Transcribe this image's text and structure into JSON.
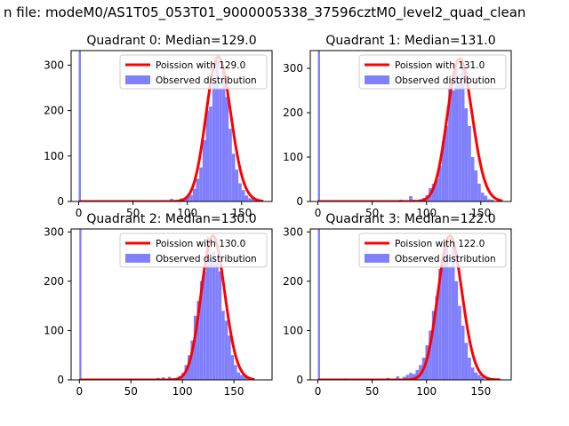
{
  "figure_title": "n file: modeM0/AS1T05_053T01_9000005338_37596cztM0_level2_quad_clean",
  "colors": {
    "hist": "#8080ff",
    "fit": "#ff0000",
    "axes": "#000000"
  },
  "chart_data": [
    {
      "type": "bar",
      "title": "Quadrant 0: Median=129.0",
      "xticks": [
        "0",
        "50",
        "100",
        "150"
      ],
      "yticks": [
        "0",
        "100",
        "200",
        "300"
      ],
      "xlim": [
        -7,
        178
      ],
      "ylim": [
        0,
        332
      ],
      "legend": {
        "placement": "upper right",
        "entries": [
          "Poission with 129.0",
          "Observed distribution"
        ]
      },
      "fit": {
        "name": "Poission with 129.0",
        "mean": 129.0,
        "peak": 318,
        "x_range": [
          0,
          170
        ]
      },
      "hist_bins": [
        [
          0,
          2,
          400
        ],
        [
          78,
          81,
          3
        ],
        [
          84,
          87,
          6
        ],
        [
          90,
          93,
          4
        ],
        [
          93,
          96,
          7
        ],
        [
          96,
          99,
          4
        ],
        [
          99,
          102,
          10
        ],
        [
          102,
          105,
          14
        ],
        [
          105,
          108,
          28
        ],
        [
          108,
          111,
          50
        ],
        [
          111,
          114,
          75
        ],
        [
          114,
          117,
          135
        ],
        [
          117,
          120,
          200
        ],
        [
          120,
          123,
          209
        ],
        [
          123,
          126,
          260
        ],
        [
          126,
          129,
          310
        ],
        [
          129,
          132,
          250
        ],
        [
          132,
          135,
          290
        ],
        [
          135,
          138,
          230
        ],
        [
          138,
          141,
          160
        ],
        [
          141,
          144,
          105
        ],
        [
          144,
          147,
          70
        ],
        [
          147,
          150,
          40
        ],
        [
          150,
          153,
          25
        ],
        [
          153,
          156,
          13
        ],
        [
          156,
          159,
          7
        ],
        [
          159,
          162,
          10
        ],
        [
          162,
          165,
          3
        ]
      ]
    },
    {
      "type": "bar",
      "title": "Quadrant 1: Median=131.0",
      "xticks": [
        "0",
        "50",
        "100",
        "150"
      ],
      "yticks": [
        "0",
        "100",
        "200",
        "300"
      ],
      "xlim": [
        -7,
        178
      ],
      "ylim": [
        0,
        340
      ],
      "legend": {
        "placement": "upper right",
        "entries": [
          "Poission with 131.0",
          "Observed distribution"
        ]
      },
      "fit": {
        "name": "Poission with 131.0",
        "mean": 131.0,
        "peak": 322,
        "x_range": [
          0,
          170
        ]
      },
      "hist_bins": [
        [
          0,
          2,
          400
        ],
        [
          75,
          78,
          4
        ],
        [
          84,
          87,
          12
        ],
        [
          87,
          90,
          4
        ],
        [
          93,
          96,
          5
        ],
        [
          96,
          99,
          8
        ],
        [
          99,
          102,
          14
        ],
        [
          102,
          105,
          30
        ],
        [
          105,
          108,
          40
        ],
        [
          108,
          111,
          50
        ],
        [
          111,
          114,
          80
        ],
        [
          114,
          117,
          135
        ],
        [
          117,
          120,
          170
        ],
        [
          120,
          123,
          260
        ],
        [
          123,
          126,
          250
        ],
        [
          126,
          129,
          300
        ],
        [
          129,
          132,
          270
        ],
        [
          132,
          135,
          300
        ],
        [
          135,
          138,
          210
        ],
        [
          138,
          141,
          170
        ],
        [
          141,
          144,
          100
        ],
        [
          144,
          147,
          70
        ],
        [
          147,
          150,
          40
        ],
        [
          150,
          153,
          20
        ],
        [
          153,
          156,
          13
        ],
        [
          156,
          159,
          5
        ],
        [
          159,
          162,
          4
        ]
      ]
    },
    {
      "type": "bar",
      "title": "Quadrant 2: Median=130.0",
      "xticks": [
        "0",
        "50",
        "100",
        "150"
      ],
      "yticks": [
        "0",
        "100",
        "200",
        "300"
      ],
      "xlim": [
        -8,
        187
      ],
      "ylim": [
        0,
        306
      ],
      "legend": {
        "placement": "upper right",
        "entries": [
          "Poission with 130.0",
          "Observed distribution"
        ]
      },
      "fit": {
        "name": "Poission with 130.0",
        "mean": 130.0,
        "peak": 292,
        "x_range": [
          0,
          170
        ]
      },
      "hist_bins": [
        [
          0,
          2,
          400
        ],
        [
          75,
          78,
          4
        ],
        [
          80,
          83,
          5
        ],
        [
          86,
          89,
          6
        ],
        [
          90,
          93,
          3
        ],
        [
          96,
          99,
          8
        ],
        [
          99,
          102,
          14
        ],
        [
          102,
          105,
          30
        ],
        [
          105,
          108,
          50
        ],
        [
          108,
          111,
          80
        ],
        [
          111,
          114,
          130
        ],
        [
          114,
          117,
          160
        ],
        [
          117,
          120,
          200
        ],
        [
          120,
          123,
          220
        ],
        [
          123,
          126,
          290
        ],
        [
          126,
          129,
          245
        ],
        [
          129,
          132,
          260
        ],
        [
          132,
          135,
          240
        ],
        [
          135,
          138,
          220
        ],
        [
          138,
          141,
          140
        ],
        [
          141,
          144,
          120
        ],
        [
          144,
          147,
          90
        ],
        [
          147,
          150,
          50
        ],
        [
          150,
          153,
          30
        ],
        [
          153,
          156,
          15
        ],
        [
          156,
          159,
          10
        ],
        [
          159,
          162,
          8
        ],
        [
          162,
          165,
          5
        ]
      ]
    },
    {
      "type": "bar",
      "title": "Quadrant 3: Median=122.0",
      "xticks": [
        "0",
        "50",
        "100",
        "150"
      ],
      "yticks": [
        "0",
        "100",
        "200",
        "300"
      ],
      "xlim": [
        -7,
        178
      ],
      "ylim": [
        0,
        306
      ],
      "legend": {
        "placement": "upper right",
        "entries": [
          "Poission with 122.0",
          "Observed distribution"
        ]
      },
      "fit": {
        "name": "Poission with 122.0",
        "mean": 122.0,
        "peak": 292,
        "x_range": [
          0,
          168
        ]
      },
      "hist_bins": [
        [
          0,
          2,
          400
        ],
        [
          24,
          27,
          3
        ],
        [
          63,
          66,
          4
        ],
        [
          72,
          75,
          7
        ],
        [
          78,
          81,
          6
        ],
        [
          81,
          84,
          10
        ],
        [
          84,
          87,
          14
        ],
        [
          87,
          90,
          12
        ],
        [
          90,
          93,
          20
        ],
        [
          93,
          96,
          30
        ],
        [
          96,
          99,
          45
        ],
        [
          99,
          102,
          70
        ],
        [
          102,
          105,
          100
        ],
        [
          105,
          108,
          140
        ],
        [
          108,
          111,
          170
        ],
        [
          111,
          114,
          225
        ],
        [
          114,
          117,
          250
        ],
        [
          117,
          120,
          270
        ],
        [
          120,
          123,
          230
        ],
        [
          123,
          126,
          270
        ],
        [
          126,
          129,
          200
        ],
        [
          129,
          132,
          150
        ],
        [
          132,
          135,
          110
        ],
        [
          135,
          138,
          75
        ],
        [
          138,
          141,
          45
        ],
        [
          141,
          144,
          25
        ],
        [
          144,
          147,
          15
        ],
        [
          147,
          150,
          10
        ],
        [
          150,
          153,
          6
        ]
      ]
    }
  ]
}
